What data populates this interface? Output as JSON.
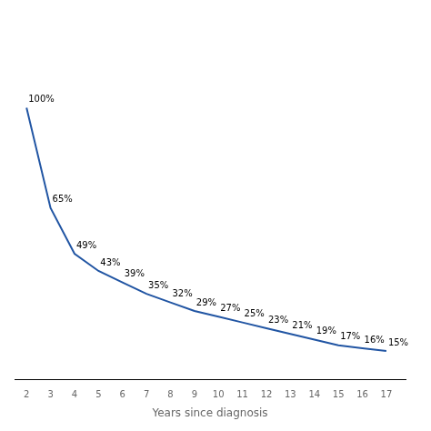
{
  "chart_data": {
    "type": "line",
    "x": [
      2,
      3,
      4,
      5,
      6,
      7,
      8,
      9,
      10,
      11,
      12,
      13,
      14,
      15,
      16,
      17
    ],
    "values": [
      100,
      65,
      49,
      43,
      39,
      35,
      32,
      29,
      27,
      25,
      23,
      21,
      19,
      17,
      16,
      15
    ],
    "value_labels": [
      "100%",
      "65%",
      "49%",
      "43%",
      "39%",
      "35%",
      "32%",
      "29%",
      "27%",
      "25%",
      "23%",
      "21%",
      "19%",
      "17%",
      "16%",
      "15%"
    ],
    "color": "#2155A3",
    "xlabel": "Years since diagnosis",
    "xlim": [
      1.5,
      17.8
    ],
    "xticks": [
      2,
      3,
      4,
      5,
      6,
      7,
      8,
      9,
      10,
      11,
      12,
      13,
      14,
      15,
      16,
      17
    ],
    "ylim": [
      5,
      130
    ],
    "grid": false,
    "data_labels": true,
    "tick_labels": "x"
  }
}
